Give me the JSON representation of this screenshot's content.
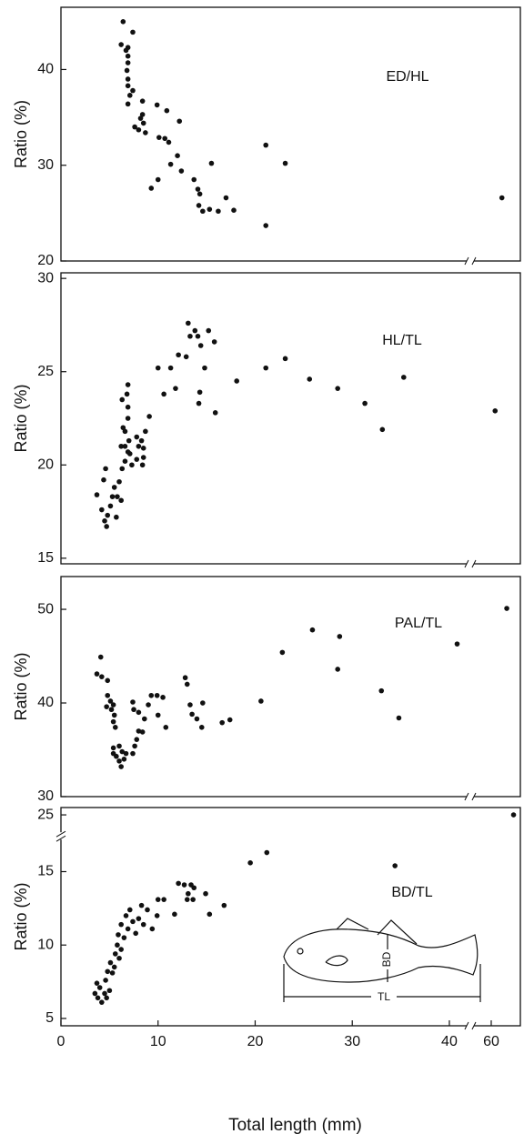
{
  "chart_data": [
    {
      "type": "scatter",
      "annotation": "ED/HL",
      "ylabel": "Ratio (%)",
      "x": [
        6.4,
        7.4,
        6.2,
        6.9,
        6.7,
        6.9,
        6.9,
        6.8,
        6.9,
        6.9,
        7.4,
        7.1,
        6.9,
        8.4,
        9.9,
        7.6,
        8.0,
        8.4,
        8.2,
        8.5,
        8.7,
        10.9,
        12.2,
        10.1,
        10.7,
        11.1,
        12.0,
        11.3,
        12.4,
        15.5,
        10.0,
        9.3,
        13.7,
        14.1,
        14.3,
        14.2,
        14.6,
        15.3,
        16.2,
        17.0,
        17.8,
        21.1,
        23.1,
        21.1,
        61.1
      ],
      "y": [
        45.0,
        43.9,
        42.6,
        42.3,
        42.0,
        41.4,
        40.7,
        39.9,
        39.0,
        38.3,
        37.8,
        37.3,
        36.4,
        36.7,
        36.3,
        34.0,
        33.7,
        35.3,
        34.9,
        34.4,
        33.4,
        35.7,
        34.6,
        32.9,
        32.8,
        32.4,
        31.0,
        30.1,
        29.4,
        30.2,
        28.5,
        27.6,
        28.5,
        27.5,
        27.0,
        25.8,
        25.2,
        25.4,
        25.2,
        26.6,
        25.3,
        32.1,
        30.2,
        23.7,
        26.6
      ],
      "xlim": [
        0,
        63
      ],
      "xbreak": [
        41.5,
        58.5
      ],
      "ylim": [
        20,
        46.5
      ],
      "yticks": [
        20,
        30,
        40
      ],
      "color": "#111111"
    },
    {
      "type": "scatter",
      "annotation": "HL/TL",
      "ylabel": "Ratio (%)",
      "x": [
        3.7,
        4.6,
        4.4,
        4.2,
        4.5,
        4.7,
        4.8,
        5.1,
        5.3,
        5.5,
        6.0,
        5.8,
        5.7,
        6.2,
        6.3,
        6.6,
        6.2,
        6.4,
        6.3,
        6.9,
        6.8,
        6.9,
        6.9,
        6.6,
        7.0,
        6.6,
        6.9,
        7.1,
        7.3,
        7.8,
        8.0,
        7.8,
        8.3,
        8.5,
        8.4,
        8.5,
        8.7,
        9.1,
        10.0,
        10.6,
        11.3,
        11.8,
        12.1,
        12.9,
        13.1,
        13.8,
        13.3,
        14.1,
        14.4,
        14.8,
        14.3,
        14.2,
        15.2,
        15.8,
        15.9,
        18.1,
        21.1,
        23.1,
        25.6,
        28.5,
        31.3,
        33.1,
        35.3,
        60.4
      ],
      "y": [
        18.4,
        19.8,
        19.2,
        17.6,
        17.0,
        16.7,
        17.3,
        17.8,
        18.3,
        18.8,
        19.1,
        18.3,
        17.2,
        18.1,
        19.8,
        20.2,
        21.0,
        22.0,
        23.5,
        24.3,
        23.8,
        23.1,
        22.5,
        21.8,
        21.3,
        21.0,
        20.7,
        20.6,
        20.0,
        20.3,
        21.0,
        21.5,
        21.3,
        20.9,
        20.0,
        20.4,
        21.8,
        22.6,
        25.2,
        23.8,
        25.2,
        24.1,
        25.9,
        25.8,
        27.6,
        27.2,
        26.9,
        26.9,
        26.4,
        25.2,
        23.9,
        23.3,
        27.2,
        26.6,
        22.8,
        24.5,
        25.2,
        25.7,
        24.6,
        24.1,
        23.3,
        21.9,
        24.7,
        22.9
      ],
      "xlim": [
        0,
        63
      ],
      "xbreak": [
        41.5,
        58.5
      ],
      "ylim": [
        14.7,
        30.3
      ],
      "yticks": [
        15,
        20,
        25,
        30
      ],
      "color": "#111111"
    },
    {
      "type": "scatter",
      "annotation": "PAL/TL",
      "ylabel": "Ratio (%)",
      "x": [
        4.1,
        3.7,
        4.2,
        4.8,
        4.8,
        5.1,
        4.7,
        5.2,
        5.4,
        5.5,
        5.4,
        5.6,
        5.4,
        5.4,
        5.7,
        6.0,
        6.0,
        6.3,
        6.5,
        6.7,
        6.2,
        7.4,
        7.6,
        7.8,
        8.0,
        8.4,
        7.4,
        7.5,
        8.0,
        8.6,
        9.0,
        9.3,
        9.9,
        10.5,
        10.8,
        10.0,
        12.8,
        13.0,
        13.3,
        13.5,
        14.0,
        14.5,
        14.6,
        16.6,
        17.4,
        20.6,
        22.8,
        25.9,
        28.5,
        28.7,
        33.0,
        34.8,
        40.8,
        61.6
      ],
      "y": [
        44.9,
        43.1,
        42.8,
        42.4,
        40.8,
        40.2,
        39.6,
        39.3,
        39.8,
        38.7,
        38.0,
        37.4,
        35.2,
        34.6,
        34.3,
        35.4,
        33.8,
        34.8,
        34.0,
        34.6,
        33.2,
        34.6,
        35.4,
        36.1,
        37.0,
        36.9,
        40.1,
        39.3,
        39.0,
        38.3,
        39.8,
        40.8,
        40.8,
        40.6,
        37.4,
        38.7,
        42.7,
        42.0,
        39.8,
        38.8,
        38.3,
        37.4,
        40.0,
        37.9,
        38.2,
        40.2,
        45.4,
        47.8,
        43.6,
        47.1,
        41.3,
        38.4,
        46.3,
        50.1
      ],
      "xlim": [
        0,
        63
      ],
      "xbreak": [
        41.5,
        58.5
      ],
      "ylim": [
        30,
        53.5
      ],
      "yticks": [
        30,
        40,
        50
      ],
      "color": "#111111"
    },
    {
      "type": "scatter",
      "annotation": "BD/TL",
      "ylabel": "Ratio (%)",
      "xlabel": "Total length (mm)",
      "x": [
        3.5,
        3.7,
        4.0,
        3.8,
        4.2,
        4.5,
        4.7,
        5.0,
        4.6,
        4.8,
        5.1,
        5.3,
        5.5,
        5.6,
        5.8,
        6.0,
        6.2,
        5.9,
        6.2,
        6.5,
        6.7,
        6.9,
        7.1,
        7.4,
        7.7,
        8.0,
        8.3,
        8.5,
        8.9,
        9.4,
        9.9,
        10.0,
        10.6,
        11.7,
        12.1,
        12.7,
        13.1,
        13.4,
        13.7,
        13.0,
        13.6,
        14.9,
        15.3,
        16.8,
        19.5,
        21.2,
        34.4,
        62.3
      ],
      "y": [
        6.7,
        7.4,
        7.1,
        6.4,
        6.1,
        6.7,
        6.4,
        6.9,
        7.6,
        8.2,
        8.8,
        8.1,
        8.5,
        9.4,
        10.0,
        9.1,
        9.7,
        10.7,
        11.4,
        10.5,
        12.0,
        11.1,
        12.4,
        11.6,
        10.8,
        11.8,
        12.7,
        11.4,
        12.4,
        11.1,
        12.0,
        13.1,
        13.1,
        12.1,
        14.2,
        14.1,
        13.5,
        14.1,
        13.9,
        13.1,
        13.1,
        13.5,
        12.1,
        12.7,
        15.6,
        16.3,
        15.4,
        25
      ],
      "xlim": [
        0,
        63
      ],
      "xbreak": [
        41.5,
        58.5
      ],
      "xticks": [
        0,
        10,
        20,
        30,
        40,
        60
      ],
      "ylim": [
        4.5,
        25.5
      ],
      "ybreak": [
        17,
        24
      ],
      "yticks": [
        5,
        10,
        15,
        25
      ],
      "color": "#111111",
      "inset_labels": [
        "BD",
        "TL"
      ]
    }
  ]
}
